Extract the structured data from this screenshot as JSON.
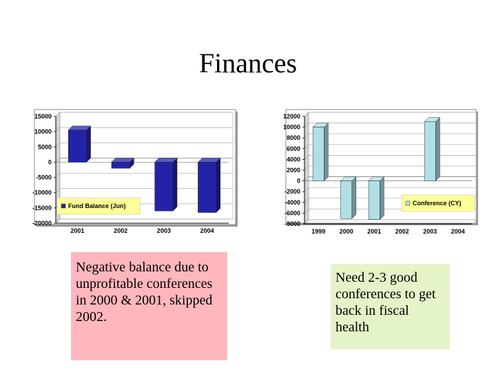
{
  "slide": {
    "title": "Finances",
    "note_left": "Negative balance due to unprofitable conferences in 2000 & 2001, skipped 2002.",
    "note_right": "Need 2-3 good conferences to get back in fiscal health"
  },
  "chart_data": [
    {
      "type": "bar",
      "categories": [
        "2001",
        "2002",
        "2003",
        "2004"
      ],
      "series": [
        {
          "name": "Fund Balance (Jun)",
          "values": [
            10500,
            -2000,
            -16000,
            -16500
          ],
          "color": "#2323a8"
        }
      ],
      "ylim": [
        -20000,
        15000
      ],
      "yticks": [
        15000,
        10000,
        5000,
        0,
        -5000,
        -10000,
        -15000,
        -20000
      ],
      "grid": true,
      "legend_position": "bottom-left",
      "legend_background": "#ffff99"
    },
    {
      "type": "bar",
      "categories": [
        "1999",
        "2000",
        "2001",
        "2002",
        "2003",
        "2004"
      ],
      "series": [
        {
          "name": "Conference (CY)",
          "values": [
            10000,
            -7000,
            -7200,
            0,
            11000,
            0
          ],
          "color": "#b0e0e6"
        }
      ],
      "ylim": [
        -8000,
        12000
      ],
      "yticks": [
        12000,
        10000,
        8000,
        6000,
        4000,
        2000,
        0,
        -2000,
        -4000,
        -6000,
        -8000
      ],
      "grid": true,
      "legend_position": "bottom-right",
      "legend_background": "#ffff99"
    }
  ]
}
